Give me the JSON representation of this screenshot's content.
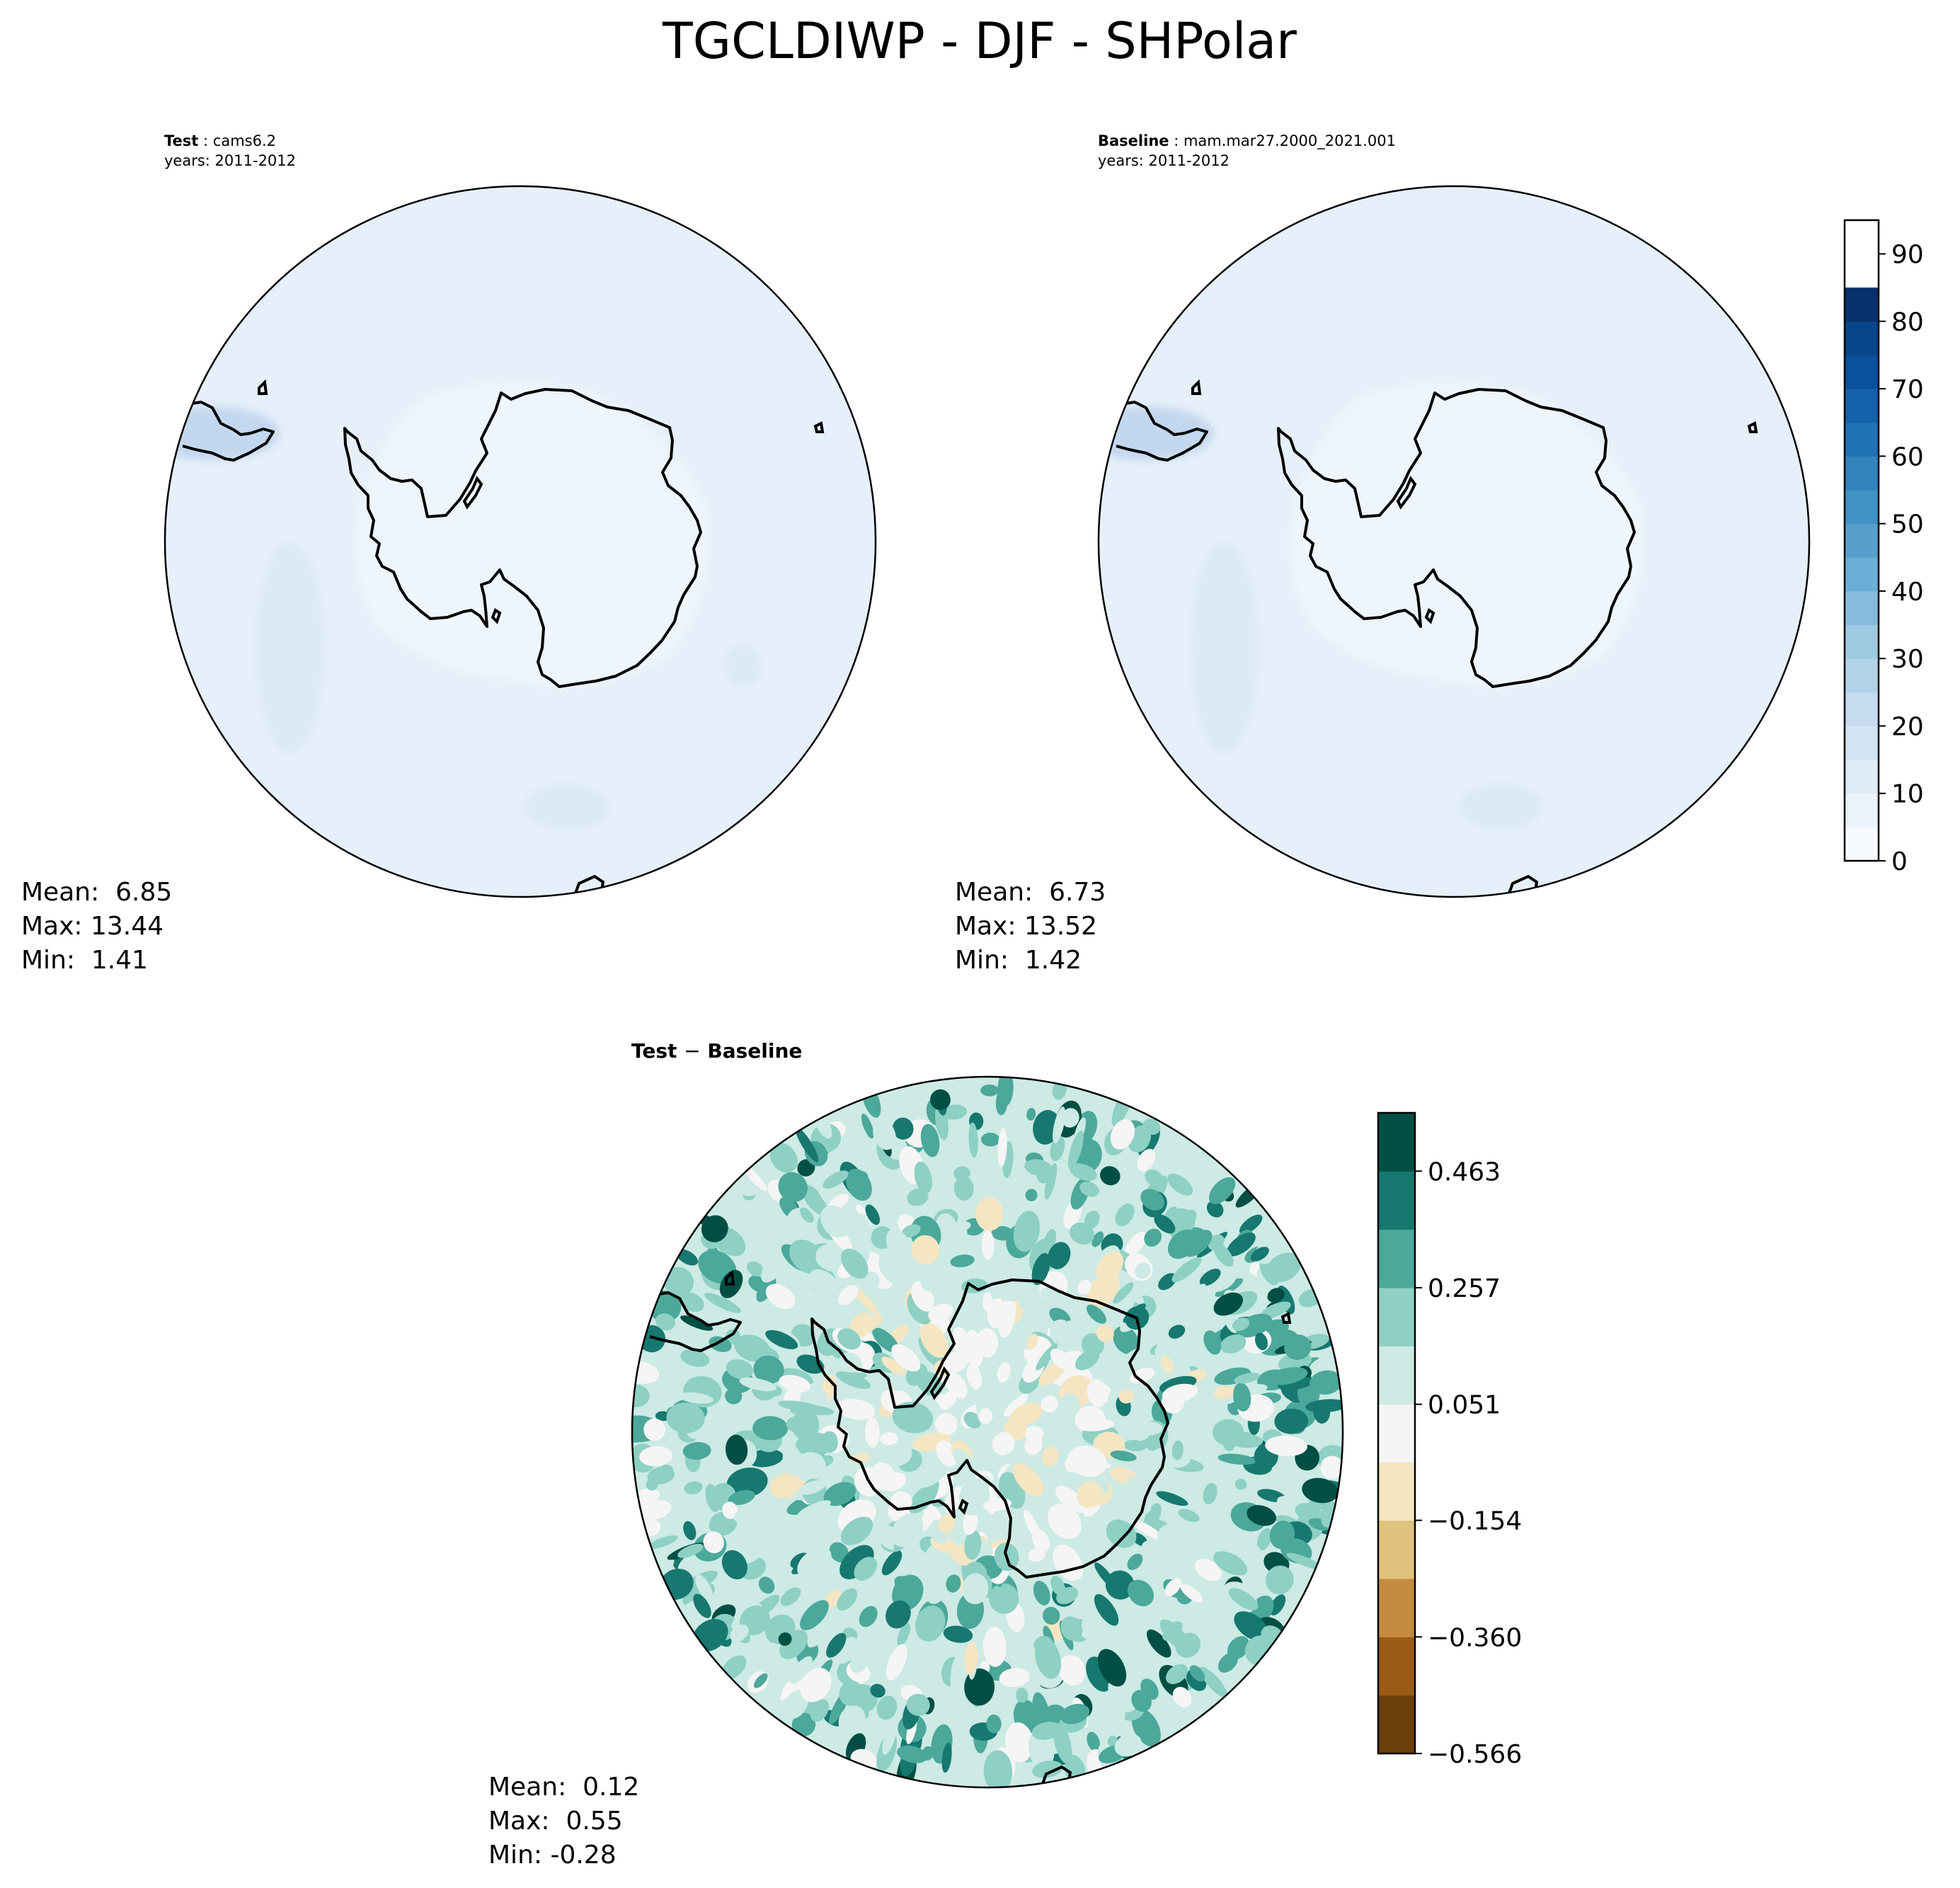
{
  "figure": {
    "title": "TGCLDIWP - DJF - SHPolar"
  },
  "panels": {
    "test": {
      "label_bold": "Test",
      "label_sep": ":",
      "case": "cams6.2",
      "years": "years: 2011-2012",
      "stats": {
        "mean": "Mean:  6.85",
        "max": "Max: 13.44",
        "min": "Min:  1.41"
      }
    },
    "baseline": {
      "label_bold": "Baseline",
      "label_sep": ":",
      "case": "mam.mar27.2000_2021.001",
      "years": "years: 2011-2012",
      "stats": {
        "mean": "Mean:  6.73",
        "max": "Max: 13.52",
        "min": "Min:  1.42"
      }
    },
    "diff": {
      "title_a": "Test",
      "title_op": "−",
      "title_b": "Baseline",
      "stats": {
        "mean": "Mean:  0.12",
        "max": "Max:  0.55",
        "min": "Min: -0.28"
      }
    }
  },
  "chart_data": [
    {
      "type": "heatmap",
      "projection": "south-polar-stereographic",
      "panel": "test",
      "colormap": "Blues",
      "mean": 6.85,
      "max": 13.44,
      "min": 1.41,
      "field_levels_present": [
        0,
        5,
        10
      ],
      "colorbar_ref": "shared"
    },
    {
      "type": "heatmap",
      "projection": "south-polar-stereographic",
      "panel": "baseline",
      "colormap": "Blues",
      "mean": 6.73,
      "max": 13.52,
      "min": 1.42,
      "field_levels_present": [
        0,
        5,
        10
      ],
      "colorbar": {
        "range": [
          0,
          95
        ],
        "ticks": [
          0,
          10,
          20,
          30,
          40,
          50,
          60,
          70,
          80,
          90
        ],
        "tick_labels": [
          "0",
          "10",
          "20",
          "30",
          "40",
          "50",
          "60",
          "70",
          "80",
          "90"
        ],
        "level_step": 5,
        "colors": [
          "#f7fbff",
          "#eaf3fc",
          "#deebf7",
          "#d3e4f3",
          "#c6dbef",
          "#b1d2e8",
          "#9ecae1",
          "#85bcdc",
          "#6baed6",
          "#57a0ce",
          "#4292c6",
          "#3282be",
          "#2171b5",
          "#1561a9",
          "#08519c",
          "#08458a",
          "#08306b"
        ]
      }
    },
    {
      "type": "heatmap",
      "projection": "south-polar-stereographic",
      "panel": "diff",
      "colormap": "BrBG",
      "mean": 0.12,
      "max": 0.55,
      "min": -0.28,
      "colorbar": {
        "boundaries": [
          -0.566,
          -0.463,
          -0.36,
          -0.257,
          -0.154,
          -0.051,
          0.051,
          0.154,
          0.257,
          0.36,
          0.463,
          0.566
        ],
        "ticks": [
          -0.566,
          -0.36,
          -0.154,
          0.051,
          0.257,
          0.463
        ],
        "tick_labels": [
          "−0.566",
          "−0.360",
          "−0.154",
          "0.051",
          "0.257",
          "0.463"
        ],
        "colors": [
          "#6d3f0a",
          "#9a5b18",
          "#c48a3f",
          "#dfc27d",
          "#f5e6c3",
          "#f5f5f5",
          "#cdeae5",
          "#8ed0c4",
          "#4ba89a",
          "#16786f",
          "#014f44"
        ]
      }
    }
  ]
}
